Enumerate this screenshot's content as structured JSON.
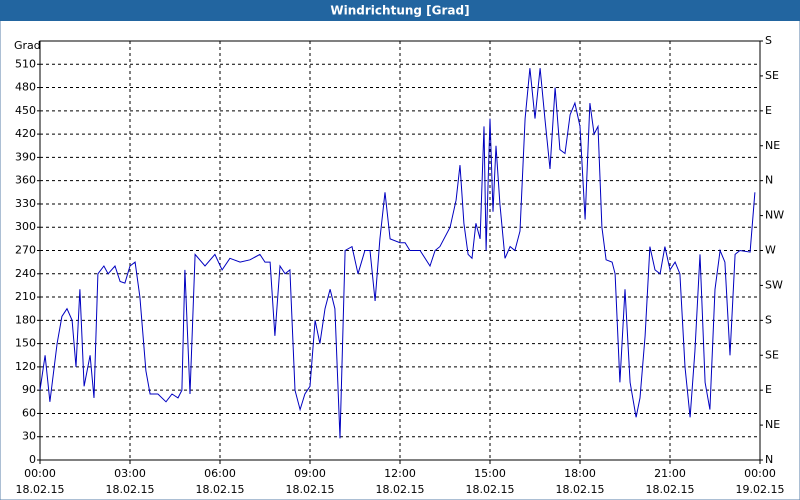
{
  "chart_data": {
    "type": "line",
    "title": "Windrichtung [Grad]",
    "y_label": "Grad",
    "color": "#0000c0",
    "grid": true,
    "xlim": [
      0,
      24
    ],
    "xticks": [
      {
        "value": 0,
        "label": "00:00 18.02.15"
      },
      {
        "value": 3,
        "label": "03:00 18.02.15"
      },
      {
        "value": 6,
        "label": "06:00 18.02.15"
      },
      {
        "value": 9,
        "label": "09:00 18.02.15"
      },
      {
        "value": 12,
        "label": "12:00 18.02.15"
      },
      {
        "value": 15,
        "label": "15:00 18.02.15"
      },
      {
        "value": 18,
        "label": "18:00 18.02.15"
      },
      {
        "value": 21,
        "label": "21:00 18.02.15"
      },
      {
        "value": 24,
        "label": "00:00 19.02.15"
      }
    ],
    "ylim": [
      0,
      540
    ],
    "yticks": [
      0,
      30,
      60,
      90,
      120,
      150,
      180,
      210,
      240,
      270,
      300,
      330,
      360,
      390,
      420,
      450,
      480,
      510
    ],
    "y2lim": [
      0,
      540
    ],
    "y2ticks": [
      {
        "value": 0,
        "label": "N"
      },
      {
        "value": 45,
        "label": "NE"
      },
      {
        "value": 90,
        "label": "E"
      },
      {
        "value": 135,
        "label": "SE"
      },
      {
        "value": 180,
        "label": "S"
      },
      {
        "value": 225,
        "label": "SW"
      },
      {
        "value": 270,
        "label": "W"
      },
      {
        "value": 315,
        "label": "NW"
      },
      {
        "value": 360,
        "label": "N"
      },
      {
        "value": 405,
        "label": "NE"
      },
      {
        "value": 450,
        "label": "E"
      },
      {
        "value": 495,
        "label": "SE"
      },
      {
        "value": 540,
        "label": "S"
      }
    ],
    "x": [
      0,
      0.17,
      0.33,
      0.57,
      0.73,
      0.9,
      1.07,
      1.2,
      1.33,
      1.47,
      1.67,
      1.8,
      1.93,
      2.13,
      2.27,
      2.5,
      2.67,
      2.83,
      3,
      3.17,
      3.33,
      3.53,
      3.67,
      3.93,
      4.2,
      4.4,
      4.6,
      4.73,
      4.83,
      5,
      5.17,
      5.5,
      5.83,
      6.07,
      6.33,
      6.67,
      7,
      7.33,
      7.5,
      7.67,
      7.83,
      8,
      8.17,
      8.33,
      8.5,
      8.67,
      8.83,
      9,
      9.17,
      9.33,
      9.5,
      9.67,
      9.83,
      10,
      10.17,
      10.4,
      10.6,
      10.83,
      11,
      11.17,
      11.33,
      11.5,
      11.67,
      12,
      12.17,
      12.33,
      12.67,
      13,
      13.17,
      13.33,
      13.67,
      13.87,
      14,
      14.13,
      14.27,
      14.4,
      14.53,
      14.67,
      14.8,
      14.87,
      15,
      15.1,
      15.2,
      15.33,
      15.5,
      15.67,
      15.83,
      16,
      16.17,
      16.33,
      16.5,
      16.67,
      16.83,
      17,
      17.17,
      17.33,
      17.5,
      17.67,
      17.83,
      18,
      18.17,
      18.33,
      18.47,
      18.6,
      18.73,
      18.87,
      19.07,
      19.17,
      19.33,
      19.5,
      19.67,
      19.87,
      20,
      20.17,
      20.33,
      20.5,
      20.67,
      20.83,
      21,
      21.17,
      21.33,
      21.5,
      21.67,
      21.83,
      22,
      22.17,
      22.33,
      22.5,
      22.67,
      22.83,
      23,
      23.17,
      23.33,
      23.67,
      23.83
    ],
    "values": [
      90,
      135,
      75,
      150,
      185,
      195,
      180,
      120,
      220,
      95,
      135,
      80,
      240,
      250,
      240,
      250,
      230,
      228,
      250,
      255,
      210,
      115,
      85,
      85,
      75,
      85,
      80,
      90,
      245,
      85,
      265,
      250,
      265,
      245,
      260,
      255,
      258,
      265,
      255,
      255,
      160,
      250,
      240,
      245,
      90,
      65,
      85,
      95,
      180,
      150,
      195,
      220,
      195,
      28,
      270,
      275,
      240,
      270,
      270,
      205,
      285,
      345,
      285,
      280,
      280,
      270,
      270,
      250,
      270,
      275,
      300,
      335,
      380,
      305,
      265,
      260,
      305,
      285,
      430,
      270,
      440,
      320,
      405,
      330,
      260,
      275,
      270,
      295,
      440,
      505,
      440,
      505,
      440,
      375,
      480,
      400,
      395,
      445,
      460,
      430,
      310,
      460,
      420,
      430,
      300,
      258,
      255,
      240,
      100,
      220,
      100,
      55,
      80,
      160,
      275,
      245,
      240,
      275,
      245,
      255,
      240,
      120,
      55,
      140,
      265,
      100,
      65,
      220,
      270,
      255,
      135,
      265,
      270,
      268,
      345
    ]
  }
}
